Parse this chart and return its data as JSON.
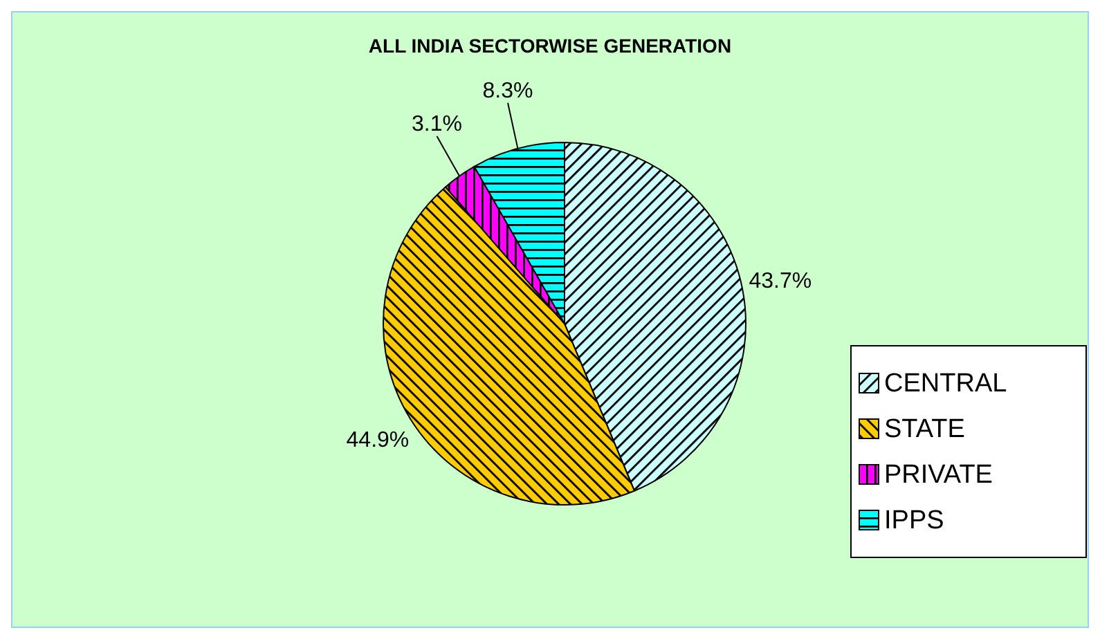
{
  "chart_data": {
    "type": "pie",
    "title": "ALL INDIA SECTORWISE GENERATION",
    "categories": [
      "CENTRAL",
      "STATE",
      "PRIVATE",
      "IPPS"
    ],
    "values": [
      43.7,
      44.9,
      3.1,
      8.3
    ],
    "colors": [
      "#ccffff",
      "#ffcc00",
      "#ff00ff",
      "#00ffff"
    ],
    "legend": "right",
    "value_labels": [
      "43.7%",
      "44.9%",
      "3.1%",
      "8.3%"
    ]
  }
}
